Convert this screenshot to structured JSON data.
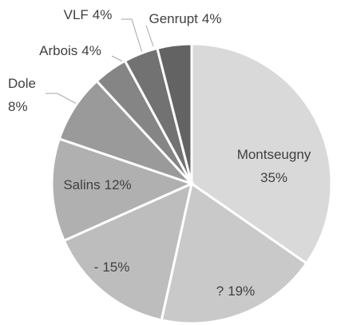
{
  "chart_data": {
    "type": "pie",
    "categories": [
      "Montseugny",
      "?",
      "-",
      "Salins",
      "Dole",
      "Arbois",
      "VLF",
      "Genrupt"
    ],
    "values": [
      35,
      19,
      15,
      12,
      8,
      4,
      4,
      4
    ],
    "value_labels": [
      "35%",
      "19%",
      "15%",
      "12%",
      "8%",
      "4%",
      "4%",
      "4%"
    ],
    "colors": [
      "#d9d9d9",
      "#c9c9c9",
      "#bdbdbd",
      "#b0b0b0",
      "#9a9a9a",
      "#858585",
      "#727272",
      "#636363"
    ]
  }
}
